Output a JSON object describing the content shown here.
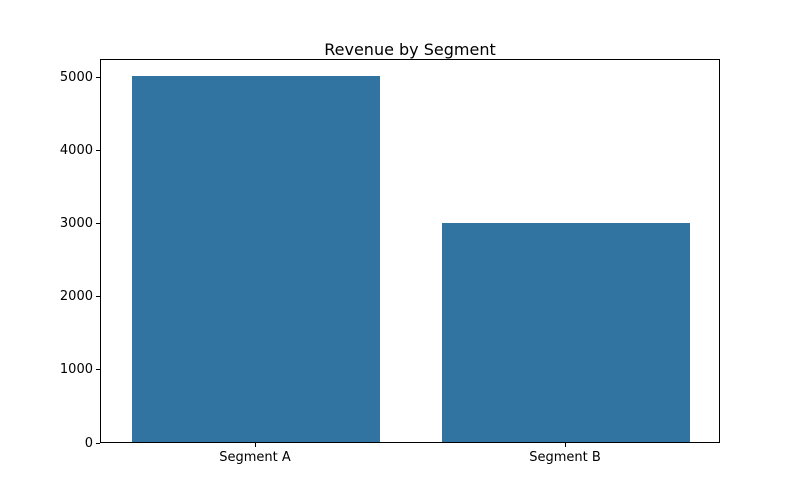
{
  "chart_data": {
    "type": "bar",
    "title": "Revenue by Segment",
    "categories": [
      "Segment A",
      "Segment B"
    ],
    "values": [
      5000,
      3000
    ],
    "bar_color": "#3274a1",
    "xlabel": "",
    "ylabel": "",
    "ylim": [
      0,
      5250
    ],
    "yticks": [
      0,
      1000,
      2000,
      3000,
      4000,
      5000
    ],
    "bar_width_fraction": 0.8,
    "grid": false,
    "legend": false
  }
}
